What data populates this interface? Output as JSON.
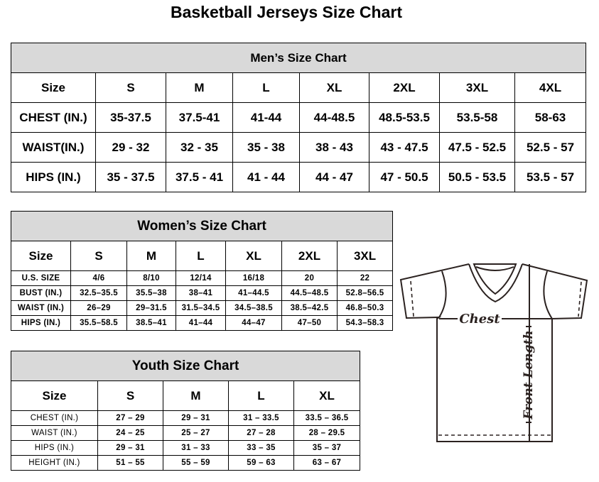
{
  "title": "Basketball Jerseys Size Chart",
  "men": {
    "title": "Men’s Size Chart",
    "headers": [
      "Size",
      "S",
      "M",
      "L",
      "XL",
      "2XL",
      "3XL",
      "4XL"
    ],
    "rows": [
      [
        "CHEST (IN.)",
        "35-37.5",
        "37.5-41",
        "41-44",
        "44-48.5",
        "48.5-53.5",
        "53.5-58",
        "58-63"
      ],
      [
        "WAIST(IN.)",
        "29 - 32",
        "32 - 35",
        "35 - 38",
        "38 - 43",
        "43 - 47.5",
        "47.5 - 52.5",
        "52.5 - 57"
      ],
      [
        "HIPS (IN.)",
        "35 - 37.5",
        "37.5 - 41",
        "41 - 44",
        "44 - 47",
        "47 - 50.5",
        "50.5 - 53.5",
        "53.5 - 57"
      ]
    ]
  },
  "women": {
    "title": "Women’s Size Chart",
    "headers": [
      "Size",
      "S",
      "M",
      "L",
      "XL",
      "2XL",
      "3XL"
    ],
    "rows": [
      [
        "U.S.  SIZE",
        "4/6",
        "8/10",
        "12/14",
        "16/18",
        "20",
        "22"
      ],
      [
        "BUST  (IN.)",
        "32.5–35.5",
        "35.5–38",
        "38–41",
        "41–44.5",
        "44.5–48.5",
        "52.8–56.5"
      ],
      [
        "WAIST  (IN.)",
        "26–29",
        "29–31.5",
        "31.5–34.5",
        "34.5–38.5",
        "38.5–42.5",
        "46.8–50.3"
      ],
      [
        "HIPS  (IN.)",
        "35.5–58.5",
        "38.5–41",
        "41–44",
        "44–47",
        "47–50",
        "54.3–58.3"
      ]
    ]
  },
  "youth": {
    "title": "Youth Size Chart",
    "headers": [
      "Size",
      "S",
      "M",
      "L",
      "XL"
    ],
    "rows": [
      [
        "CHEST  (IN.)",
        "27  –  29",
        "29  –  31",
        "31  –  33.5",
        "33.5  –  36.5"
      ],
      [
        "WAIST  (IN.)",
        "24  –  25",
        "25  –  27",
        "27  –  28",
        "28  –  29.5"
      ],
      [
        "HIPS  (IN.)",
        "29  –  31",
        "31  –  33",
        "33  –  35",
        "35  –  37"
      ],
      [
        "HEIGHT  (IN.)",
        "51  –  55",
        "55  –  59",
        "59  –  63",
        "63  –  67"
      ]
    ]
  },
  "diagram": {
    "chest_label": "Chest",
    "length_label": "Front Length",
    "line_color": "#2b2220"
  }
}
